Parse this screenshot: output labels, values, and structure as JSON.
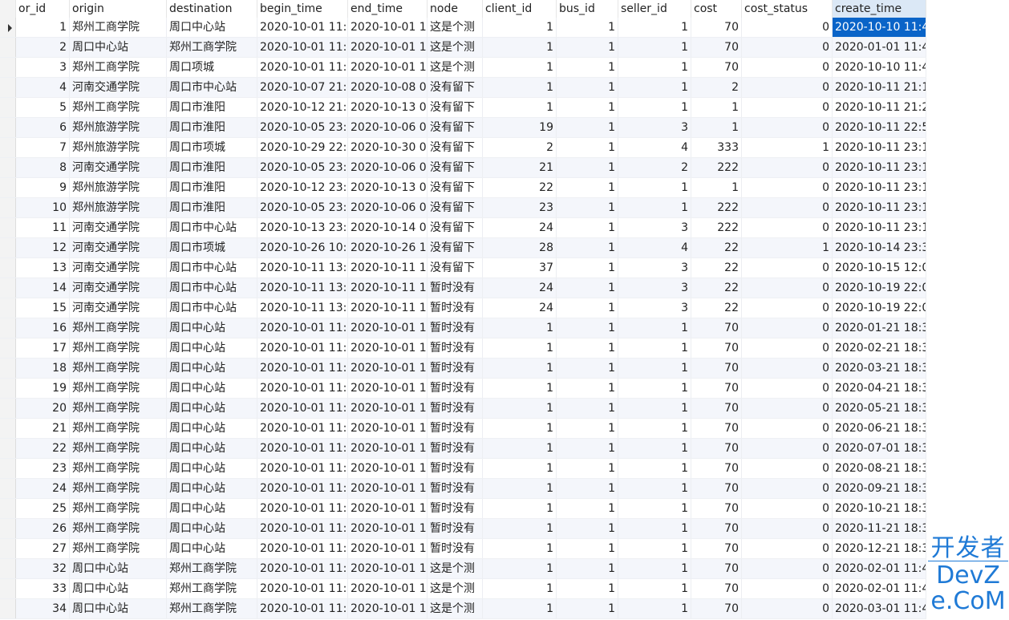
{
  "columns": [
    "or_id",
    "origin",
    "destination",
    "begin_time",
    "end_time",
    "node",
    "client_id",
    "bus_id",
    "seller_id",
    "cost",
    "cost_status",
    "create_time"
  ],
  "rows": [
    [
      "1",
      "郑州工商学院",
      "周口中心站",
      "2020-10-01 11:",
      "2020-10-01 1",
      "这是个测",
      "1",
      "1",
      "1",
      "70",
      "0",
      "2020-10-10 11:4"
    ],
    [
      "2",
      "周口中心站",
      "郑州工商学院",
      "2020-10-01 11:",
      "2020-10-01 1",
      "这是个测",
      "1",
      "1",
      "1",
      "70",
      "0",
      "2020-01-01 11:4"
    ],
    [
      "3",
      "郑州工商学院",
      "周口项城",
      "2020-10-01 11:",
      "2020-10-01 1",
      "这是个测",
      "1",
      "1",
      "1",
      "70",
      "0",
      "2020-10-10 11:4"
    ],
    [
      "4",
      "河南交通学院",
      "周口市中心站",
      "2020-10-07 21:",
      "2020-10-08 0",
      "没有留下",
      "1",
      "1",
      "1",
      "2",
      "0",
      "2020-10-11 21:1"
    ],
    [
      "5",
      "郑州工商学院",
      "周口市淮阳",
      "2020-10-12 21:",
      "2020-10-13 0",
      "没有留下",
      "1",
      "1",
      "1",
      "1",
      "0",
      "2020-10-11 21:2"
    ],
    [
      "6",
      "郑州旅游学院",
      "周口市淮阳",
      "2020-10-05 23:",
      "2020-10-06 0",
      "没有留下",
      "19",
      "1",
      "3",
      "1",
      "0",
      "2020-10-11 22:5"
    ],
    [
      "7",
      "郑州旅游学院",
      "周口市项城",
      "2020-10-29 22:",
      "2020-10-30 0",
      "没有留下",
      "2",
      "1",
      "4",
      "333",
      "1",
      "2020-10-11 23:1"
    ],
    [
      "8",
      "河南交通学院",
      "周口市淮阳",
      "2020-10-05 23:",
      "2020-10-06 0",
      "没有留下",
      "21",
      "1",
      "2",
      "222",
      "0",
      "2020-10-11 23:1"
    ],
    [
      "9",
      "郑州旅游学院",
      "周口市淮阳",
      "2020-10-12 23:",
      "2020-10-13 0",
      "没有留下",
      "22",
      "1",
      "1",
      "1",
      "0",
      "2020-10-11 23:1"
    ],
    [
      "10",
      "郑州旅游学院",
      "周口市淮阳",
      "2020-10-05 23:",
      "2020-10-06 0",
      "没有留下",
      "23",
      "1",
      "1",
      "222",
      "0",
      "2020-10-11 23:1"
    ],
    [
      "11",
      "河南交通学院",
      "周口市中心站",
      "2020-10-13 23:",
      "2020-10-14 0",
      "没有留下",
      "24",
      "1",
      "3",
      "222",
      "0",
      "2020-10-11 23:1"
    ],
    [
      "12",
      "河南交通学院",
      "周口市项城",
      "2020-10-26 10:",
      "2020-10-26 1",
      "没有留下",
      "28",
      "1",
      "4",
      "22",
      "1",
      "2020-10-14 23:3"
    ],
    [
      "13",
      "河南交通学院",
      "周口市中心站",
      "2020-10-11 13:",
      "2020-10-11 1",
      "没有留下",
      "37",
      "1",
      "3",
      "22",
      "0",
      "2020-10-15 12:0"
    ],
    [
      "14",
      "河南交通学院",
      "周口市中心站",
      "2020-10-11 13:",
      "2020-10-11 1",
      "暂时没有",
      "24",
      "1",
      "3",
      "22",
      "0",
      "2020-10-19 22:0"
    ],
    [
      "15",
      "河南交通学院",
      "周口市中心站",
      "2020-10-11 13:",
      "2020-10-11 1",
      "暂时没有",
      "24",
      "1",
      "3",
      "22",
      "0",
      "2020-10-19 22:0"
    ],
    [
      "16",
      "郑州工商学院",
      "周口中心站",
      "2020-10-01 11:",
      "2020-10-01 1",
      "暂时没有",
      "1",
      "1",
      "1",
      "70",
      "0",
      "2020-01-21 18:3"
    ],
    [
      "17",
      "郑州工商学院",
      "周口中心站",
      "2020-10-01 11:",
      "2020-10-01 1",
      "暂时没有",
      "1",
      "1",
      "1",
      "70",
      "0",
      "2020-02-21 18:3"
    ],
    [
      "18",
      "郑州工商学院",
      "周口中心站",
      "2020-10-01 11:",
      "2020-10-01 1",
      "暂时没有",
      "1",
      "1",
      "1",
      "70",
      "0",
      "2020-03-21 18:3"
    ],
    [
      "19",
      "郑州工商学院",
      "周口中心站",
      "2020-10-01 11:",
      "2020-10-01 1",
      "暂时没有",
      "1",
      "1",
      "1",
      "70",
      "0",
      "2020-04-21 18:3"
    ],
    [
      "20",
      "郑州工商学院",
      "周口中心站",
      "2020-10-01 11:",
      "2020-10-01 1",
      "暂时没有",
      "1",
      "1",
      "1",
      "70",
      "0",
      "2020-05-21 18:3"
    ],
    [
      "21",
      "郑州工商学院",
      "周口中心站",
      "2020-10-01 11:",
      "2020-10-01 1",
      "暂时没有",
      "1",
      "1",
      "1",
      "70",
      "0",
      "2020-06-21 18:3"
    ],
    [
      "22",
      "郑州工商学院",
      "周口中心站",
      "2020-10-01 11:",
      "2020-10-01 1",
      "暂时没有",
      "1",
      "1",
      "1",
      "70",
      "0",
      "2020-07-01 18:3"
    ],
    [
      "23",
      "郑州工商学院",
      "周口中心站",
      "2020-10-01 11:",
      "2020-10-01 1",
      "暂时没有",
      "1",
      "1",
      "1",
      "70",
      "0",
      "2020-08-21 18:3"
    ],
    [
      "24",
      "郑州工商学院",
      "周口中心站",
      "2020-10-01 11:",
      "2020-10-01 1",
      "暂时没有",
      "1",
      "1",
      "1",
      "70",
      "0",
      "2020-09-21 18:3"
    ],
    [
      "25",
      "郑州工商学院",
      "周口中心站",
      "2020-10-01 11:",
      "2020-10-01 1",
      "暂时没有",
      "1",
      "1",
      "1",
      "70",
      "0",
      "2020-10-21 18:3"
    ],
    [
      "26",
      "郑州工商学院",
      "周口中心站",
      "2020-10-01 11:",
      "2020-10-01 1",
      "暂时没有",
      "1",
      "1",
      "1",
      "70",
      "0",
      "2020-11-21 18:3"
    ],
    [
      "27",
      "郑州工商学院",
      "周口中心站",
      "2020-10-01 11:",
      "2020-10-01 1",
      "暂时没有",
      "1",
      "1",
      "1",
      "70",
      "0",
      "2020-12-21 18:3"
    ],
    [
      "32",
      "周口中心站",
      "郑州工商学院",
      "2020-10-01 11:",
      "2020-10-01 1",
      "这是个测",
      "1",
      "1",
      "1",
      "70",
      "0",
      "2020-02-01 11:4"
    ],
    [
      "33",
      "周口中心站",
      "郑州工商学院",
      "2020-10-01 11:",
      "2020-10-01 1",
      "这是个测",
      "1",
      "1",
      "1",
      "70",
      "0",
      "2020-02-01 11:4"
    ],
    [
      "34",
      "周口中心站",
      "郑州工商学院",
      "2020-10-01 11:",
      "2020-10-01 1",
      "这是个测",
      "1",
      "1",
      "1",
      "70",
      "0",
      "2020-03-01 11:4"
    ]
  ],
  "selected_row": 0,
  "selected_column": 11,
  "colors": {
    "selection": "#0a64c8",
    "header_selected": "#dbe8f6",
    "watermark": "#1f7ad6"
  },
  "watermark": {
    "cn": "开发者",
    "en": "DevZe.CoM"
  }
}
